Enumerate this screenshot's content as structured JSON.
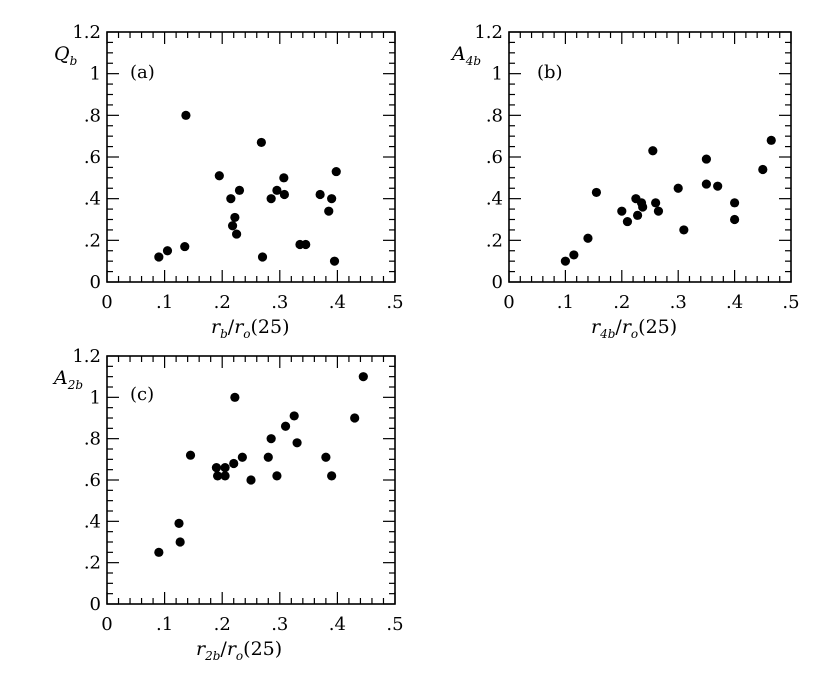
{
  "colors": {
    "marker": "#000000",
    "axis": "#000000",
    "background": "#ffffff"
  },
  "chart_data": [
    {
      "type": "scatter",
      "panel_label": "(a)",
      "ylabel": {
        "main": "Q",
        "sub": "b"
      },
      "xlabel": {
        "num": "r",
        "num_sub": "b",
        "den": "r",
        "den_sub": "o",
        "tail": "(25)"
      },
      "xlim": [
        0,
        0.5
      ],
      "ylim": [
        0,
        1.2
      ],
      "xticks": [
        "0",
        ".1",
        ".2",
        ".3",
        ".4",
        ".5"
      ],
      "yticks": [
        "0",
        ".2",
        ".4",
        ".6",
        ".8",
        "1",
        "1.2"
      ],
      "points": [
        [
          0.09,
          0.12
        ],
        [
          0.105,
          0.15
        ],
        [
          0.135,
          0.17
        ],
        [
          0.137,
          0.8
        ],
        [
          0.195,
          0.51
        ],
        [
          0.215,
          0.4
        ],
        [
          0.218,
          0.27
        ],
        [
          0.222,
          0.31
        ],
        [
          0.225,
          0.23
        ],
        [
          0.23,
          0.44
        ],
        [
          0.268,
          0.67
        ],
        [
          0.27,
          0.12
        ],
        [
          0.285,
          0.4
        ],
        [
          0.295,
          0.44
        ],
        [
          0.307,
          0.5
        ],
        [
          0.308,
          0.42
        ],
        [
          0.335,
          0.18
        ],
        [
          0.345,
          0.18
        ],
        [
          0.37,
          0.42
        ],
        [
          0.385,
          0.34
        ],
        [
          0.39,
          0.4
        ],
        [
          0.395,
          0.1
        ],
        [
          0.398,
          0.53
        ]
      ]
    },
    {
      "type": "scatter",
      "panel_label": "(b)",
      "ylabel": {
        "main": "A",
        "sub": "4b"
      },
      "xlabel": {
        "num": "r",
        "num_sub": "4b",
        "den": "r",
        "den_sub": "o",
        "tail": "(25)"
      },
      "xlim": [
        0,
        0.5
      ],
      "ylim": [
        0,
        1.2
      ],
      "xticks": [
        "0",
        ".1",
        ".2",
        ".3",
        ".4",
        ".5"
      ],
      "yticks": [
        "0",
        ".2",
        ".4",
        ".6",
        ".8",
        "1",
        "1.2"
      ],
      "points": [
        [
          0.1,
          0.1
        ],
        [
          0.115,
          0.13
        ],
        [
          0.14,
          0.21
        ],
        [
          0.155,
          0.43
        ],
        [
          0.2,
          0.34
        ],
        [
          0.21,
          0.29
        ],
        [
          0.225,
          0.4
        ],
        [
          0.228,
          0.32
        ],
        [
          0.235,
          0.38
        ],
        [
          0.237,
          0.36
        ],
        [
          0.255,
          0.63
        ],
        [
          0.26,
          0.38
        ],
        [
          0.265,
          0.34
        ],
        [
          0.3,
          0.45
        ],
        [
          0.31,
          0.25
        ],
        [
          0.35,
          0.59
        ],
        [
          0.35,
          0.47
        ],
        [
          0.37,
          0.46
        ],
        [
          0.4,
          0.3
        ],
        [
          0.4,
          0.38
        ],
        [
          0.45,
          0.54
        ],
        [
          0.465,
          0.68
        ]
      ]
    },
    {
      "type": "scatter",
      "panel_label": "(c)",
      "ylabel": {
        "main": "A",
        "sub": "2b"
      },
      "xlabel": {
        "num": "r",
        "num_sub": "2b",
        "den": "r",
        "den_sub": "o",
        "tail": "(25)"
      },
      "xlim": [
        0,
        0.5
      ],
      "ylim": [
        0,
        1.2
      ],
      "xticks": [
        "0",
        ".1",
        ".2",
        ".3",
        ".4",
        ".5"
      ],
      "yticks": [
        "0",
        ".2",
        ".4",
        ".6",
        ".8",
        "1",
        "1.2"
      ],
      "points": [
        [
          0.09,
          0.25
        ],
        [
          0.125,
          0.39
        ],
        [
          0.127,
          0.3
        ],
        [
          0.145,
          0.72
        ],
        [
          0.19,
          0.66
        ],
        [
          0.192,
          0.62
        ],
        [
          0.205,
          0.66
        ],
        [
          0.205,
          0.62
        ],
        [
          0.22,
          0.68
        ],
        [
          0.222,
          1.0
        ],
        [
          0.235,
          0.71
        ],
        [
          0.25,
          0.6
        ],
        [
          0.28,
          0.71
        ],
        [
          0.285,
          0.8
        ],
        [
          0.295,
          0.62
        ],
        [
          0.31,
          0.86
        ],
        [
          0.325,
          0.91
        ],
        [
          0.33,
          0.78
        ],
        [
          0.38,
          0.71
        ],
        [
          0.39,
          0.62
        ],
        [
          0.43,
          0.9
        ],
        [
          0.445,
          1.1
        ]
      ]
    }
  ]
}
